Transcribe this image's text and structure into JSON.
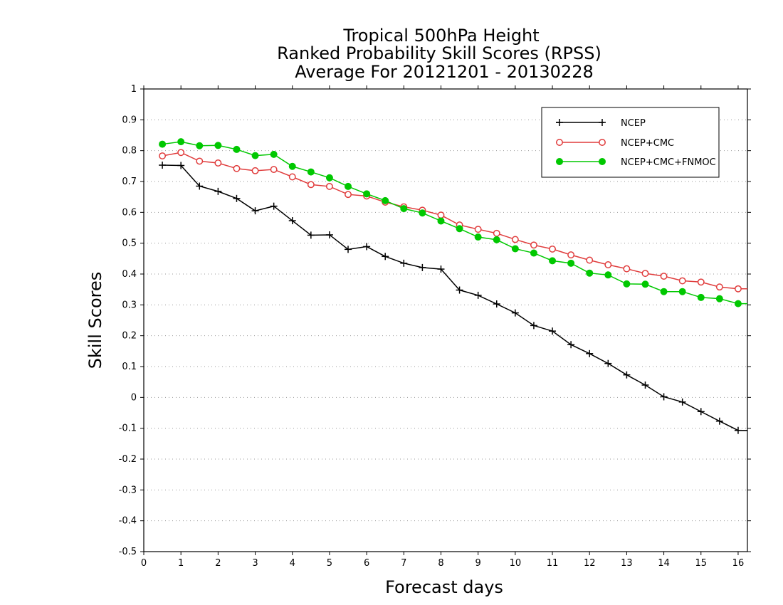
{
  "chart_data": {
    "type": "line",
    "title_lines": [
      "Tropical 500hPa Height",
      "Ranked Probability Skill Scores (RPSS)",
      "Average For 20121201 - 20130228"
    ],
    "xlabel": "Forecast days",
    "ylabel": "Skill Scores",
    "xlim": [
      0,
      16.25
    ],
    "ylim": [
      -0.5,
      1
    ],
    "xticks": [
      "0",
      "1",
      "2",
      "3",
      "4",
      "5",
      "6",
      "7",
      "8",
      "9",
      "10",
      "11",
      "12",
      "13",
      "14",
      "15",
      "16"
    ],
    "yticks": [
      "1",
      "0.9",
      "0.8",
      "0.7",
      "0.6",
      "0.5",
      "0.4",
      "0.3",
      "0.2",
      "0.1",
      "0",
      "-0.1",
      "-0.2",
      "-0.3",
      "-0.4",
      "-0.5"
    ],
    "grid": "horizontal dotted",
    "legend_position": "top-right",
    "x": [
      0.5,
      1,
      1.5,
      2,
      2.5,
      3,
      3.5,
      4,
      4.5,
      5,
      5.5,
      6,
      6.5,
      7,
      7.5,
      8,
      8.5,
      9,
      9.5,
      10,
      10.5,
      11,
      11.5,
      12,
      12.5,
      13,
      13.5,
      14,
      14.5,
      15,
      15.5,
      16,
      16.25
    ],
    "series": [
      {
        "name": "NCEP",
        "color": "#000000",
        "marker": "plus",
        "values": [
          0.753,
          0.752,
          0.685,
          0.668,
          0.645,
          0.605,
          0.62,
          0.573,
          0.526,
          0.527,
          0.48,
          0.489,
          0.457,
          0.435,
          0.421,
          0.416,
          0.348,
          0.331,
          0.303,
          0.274,
          0.233,
          0.215,
          0.171,
          0.142,
          0.11,
          0.073,
          0.04,
          0.002,
          -0.015,
          -0.046,
          -0.077,
          -0.107,
          -0.107
        ]
      },
      {
        "name": "NCEP+CMC",
        "color": "#e03c3c",
        "marker": "open-circle",
        "values": [
          0.783,
          0.794,
          0.766,
          0.76,
          0.742,
          0.735,
          0.739,
          0.715,
          0.69,
          0.684,
          0.658,
          0.653,
          0.633,
          0.618,
          0.607,
          0.591,
          0.559,
          0.545,
          0.532,
          0.512,
          0.494,
          0.481,
          0.462,
          0.445,
          0.43,
          0.417,
          0.402,
          0.393,
          0.378,
          0.374,
          0.358,
          0.352,
          0.352
        ]
      },
      {
        "name": "NCEP+CMC+FNMOC",
        "color": "#00c800",
        "marker": "filled-circle",
        "values": [
          0.821,
          0.829,
          0.816,
          0.817,
          0.804,
          0.784,
          0.788,
          0.749,
          0.731,
          0.712,
          0.684,
          0.66,
          0.638,
          0.612,
          0.598,
          0.572,
          0.547,
          0.52,
          0.511,
          0.482,
          0.468,
          0.443,
          0.435,
          0.403,
          0.397,
          0.368,
          0.367,
          0.343,
          0.343,
          0.324,
          0.32,
          0.304,
          0.304
        ]
      }
    ]
  }
}
